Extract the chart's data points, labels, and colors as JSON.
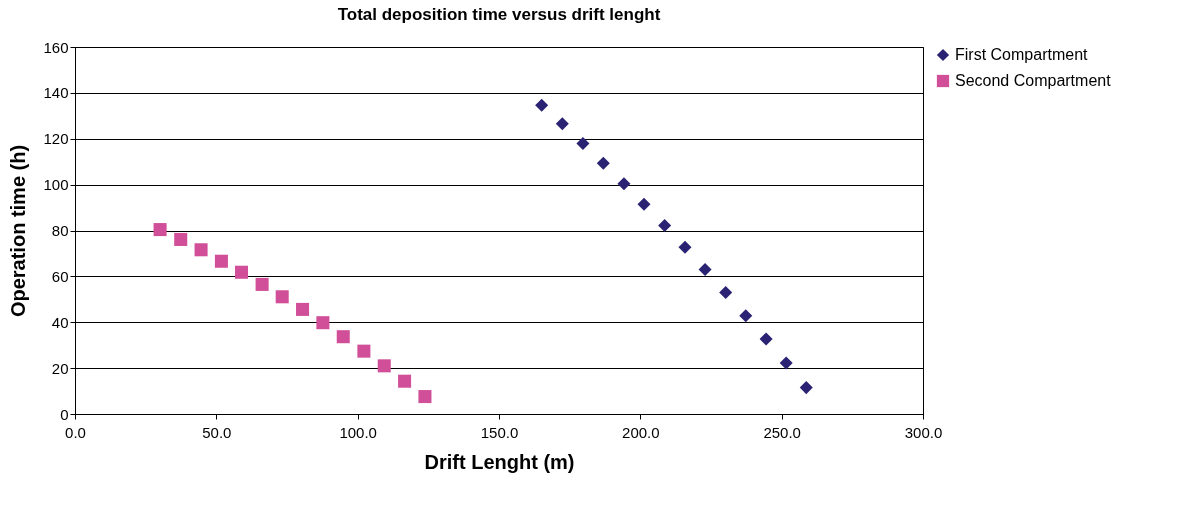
{
  "chart_data": {
    "type": "scatter",
    "title": "Total deposition time versus drift lenght",
    "xlabel": "Drift Lenght (m)",
    "ylabel": "Operation time (h)",
    "series": [
      {
        "name": "First Compartment",
        "color": "#2a2273",
        "marker": "diamond",
        "x": [
          165.1,
          172.4,
          179.7,
          186.9,
          194.2,
          201.3,
          208.6,
          215.8,
          222.9,
          230.2,
          237.3,
          244.5,
          251.6,
          258.7
        ],
        "values": [
          134.6,
          126.5,
          117.9,
          109.3,
          100.4,
          91.4,
          82.2,
          72.7,
          63.0,
          53.0,
          42.8,
          32.7,
          22.2,
          11.5
        ]
      },
      {
        "name": "Second Compartment",
        "color": "#d14f98",
        "marker": "square",
        "x": [
          30.1,
          37.4,
          44.6,
          51.8,
          58.9,
          66.2,
          73.3,
          80.5,
          87.7,
          94.9,
          102.2,
          109.4,
          116.6,
          123.8
        ],
        "values": [
          80.4,
          76.1,
          71.6,
          66.6,
          61.8,
          56.5,
          51.1,
          45.6,
          39.8,
          33.7,
          27.4,
          21.0,
          14.3,
          7.6
        ]
      }
    ],
    "xlim": [
      0,
      300
    ],
    "xticks": [
      {
        "value": 0,
        "label": "0.0"
      },
      {
        "value": 50,
        "label": "50.0"
      },
      {
        "value": 100,
        "label": "100.0"
      },
      {
        "value": 150,
        "label": "150.0"
      },
      {
        "value": 200,
        "label": "200.0"
      },
      {
        "value": 250,
        "label": "250.0"
      },
      {
        "value": 300,
        "label": "300.0"
      }
    ],
    "ylim": [
      0,
      160
    ],
    "yticks": [
      0,
      20,
      40,
      60,
      80,
      100,
      120,
      140,
      160
    ],
    "grid": "y",
    "legend": "right"
  }
}
